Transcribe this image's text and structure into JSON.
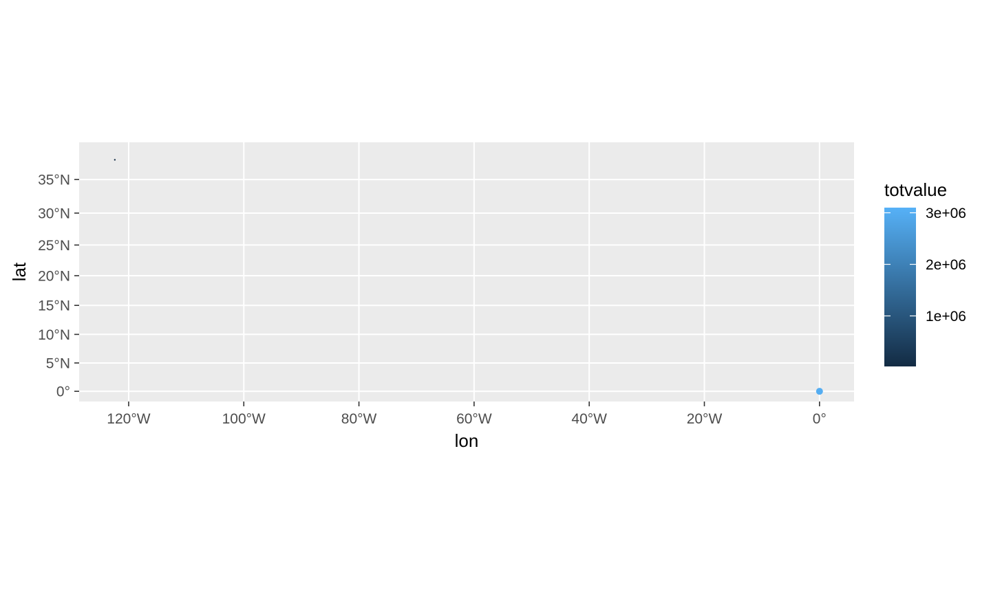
{
  "chart_data": {
    "type": "scatter",
    "title": "",
    "xlabel": "lon",
    "ylabel": "lat",
    "x_ticks": [
      {
        "value": -120,
        "label": "120°W"
      },
      {
        "value": -100,
        "label": "100°W"
      },
      {
        "value": -80,
        "label": "80°W"
      },
      {
        "value": -60,
        "label": "60°W"
      },
      {
        "value": -40,
        "label": "40°W"
      },
      {
        "value": -20,
        "label": "20°W"
      },
      {
        "value": 0,
        "label": "0°"
      }
    ],
    "y_ticks": [
      {
        "value": 0,
        "label": "0°"
      },
      {
        "value": 5,
        "label": "5°N"
      },
      {
        "value": 10,
        "label": "10°N"
      },
      {
        "value": 15,
        "label": "15°N"
      },
      {
        "value": 20,
        "label": "20°N"
      },
      {
        "value": 25,
        "label": "25°N"
      },
      {
        "value": 30,
        "label": "30°N"
      },
      {
        "value": 35,
        "label": "35°N"
      }
    ],
    "xlim": [
      -128.6,
      6.0
    ],
    "ylim": [
      -1.8,
      40.2
    ],
    "y_projection": "mercator",
    "grid": true,
    "points": [
      {
        "lon": -122.4,
        "lat": 37.8,
        "totvalue": 50000
      },
      {
        "lon": 0.0,
        "lat": 0.0,
        "totvalue": 3000000
      }
    ],
    "legend": {
      "title": "totvalue",
      "placement": "right",
      "min": 20000,
      "max": 3100000,
      "color_low": "#132B43",
      "color_high": "#56B1F7",
      "breaks": [
        {
          "value": 1000000,
          "label": "1e+06"
        },
        {
          "value": 2000000,
          "label": "2e+06"
        },
        {
          "value": 3000000,
          "label": "3e+06"
        }
      ]
    },
    "colors": {
      "panel": "#EBEBEB",
      "grid": "#FFFFFF",
      "tick": "#333333",
      "tick_label": "#4D4D4D"
    }
  }
}
